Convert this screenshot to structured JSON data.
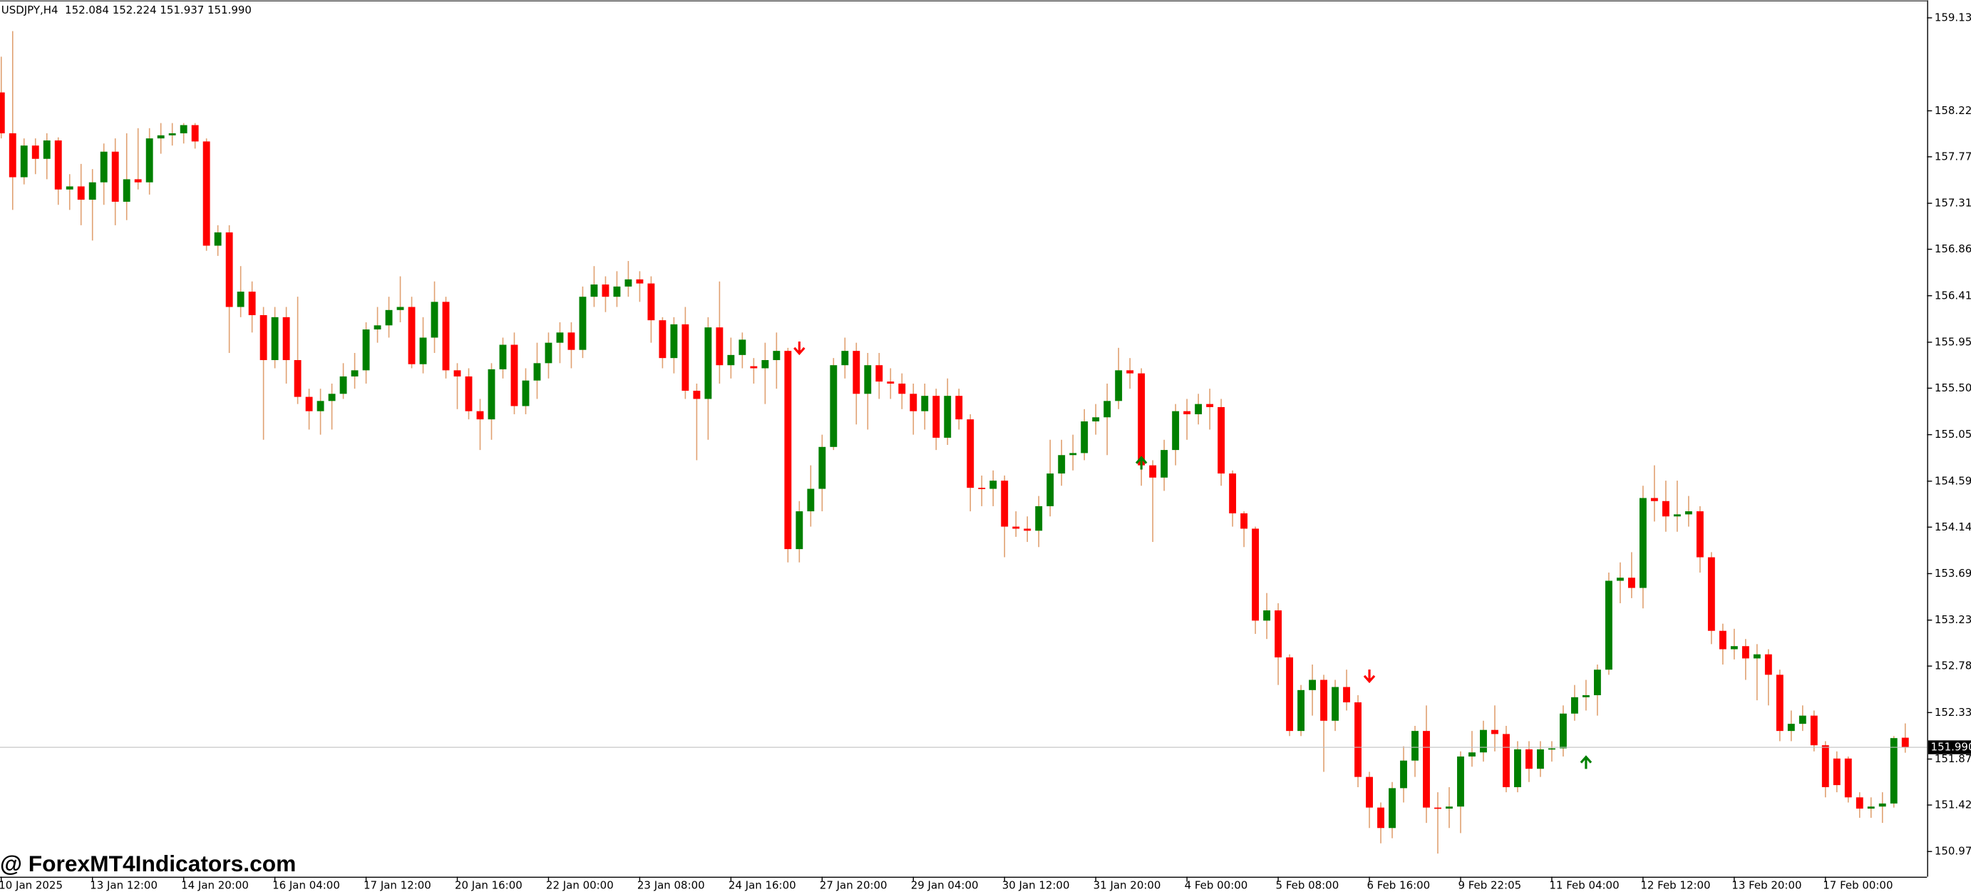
{
  "chart_data": {
    "type": "candlestick",
    "header": "USDJPY,H4  152.084 152.224 151.937 151.990",
    "watermark": "@ ForexMT4Indicators.com",
    "bull_color": "#008000",
    "bear_color": "#ff0000",
    "wick_color": "#e0a070",
    "grid": false,
    "ylim": [
      150.724,
      159.302
    ],
    "yticks": [
      {
        "value": 159.13,
        "label": "159.130"
      },
      {
        "value": 158.22,
        "label": "158.220"
      },
      {
        "value": 157.77,
        "label": "157.770"
      },
      {
        "value": 157.315,
        "label": "157.315"
      },
      {
        "value": 156.865,
        "label": "156.865"
      },
      {
        "value": 156.41,
        "label": "156.410"
      },
      {
        "value": 155.955,
        "label": "155.955"
      },
      {
        "value": 155.505,
        "label": "155.505"
      },
      {
        "value": 155.05,
        "label": "155.050"
      },
      {
        "value": 154.595,
        "label": "154.595"
      },
      {
        "value": 154.145,
        "label": "154.145"
      },
      {
        "value": 153.69,
        "label": "153.690"
      },
      {
        "value": 153.235,
        "label": "153.235"
      },
      {
        "value": 152.785,
        "label": "152.785"
      },
      {
        "value": 152.33,
        "label": "152.330"
      },
      {
        "value": 151.875,
        "label": "151.875"
      },
      {
        "value": 151.425,
        "label": "151.425"
      },
      {
        "value": 150.97,
        "label": "150.970"
      }
    ],
    "last_price": {
      "value": 151.99,
      "label": "151.990"
    },
    "xticks": [
      {
        "value": 0,
        "label": "10 Jan 2025"
      },
      {
        "value": 8,
        "label": "13 Jan 12:00"
      },
      {
        "value": 16,
        "label": "14 Jan 20:00"
      },
      {
        "value": 24,
        "label": "16 Jan 04:00"
      },
      {
        "value": 32,
        "label": "17 Jan 12:00"
      },
      {
        "value": 40,
        "label": "20 Jan 16:00"
      },
      {
        "value": 48,
        "label": "22 Jan 00:00"
      },
      {
        "value": 56,
        "label": "23 Jan 08:00"
      },
      {
        "value": 64,
        "label": "24 Jan 16:00"
      },
      {
        "value": 72,
        "label": "27 Jan 20:00"
      },
      {
        "value": 80,
        "label": "29 Jan 04:00"
      },
      {
        "value": 88,
        "label": "30 Jan 12:00"
      },
      {
        "value": 96,
        "label": "31 Jan 20:00"
      },
      {
        "value": 104,
        "label": "4 Feb 00:00"
      },
      {
        "value": 112,
        "label": "5 Feb 08:00"
      },
      {
        "value": 120,
        "label": "6 Feb 16:00"
      },
      {
        "value": 128,
        "label": "9 Feb 22:05"
      },
      {
        "value": 136,
        "label": "11 Feb 04:00"
      },
      {
        "value": 144,
        "label": "12 Feb 12:00"
      },
      {
        "value": 152,
        "label": "13 Feb 20:00"
      },
      {
        "value": 160,
        "label": "17 Feb 00:00"
      }
    ],
    "signals": [
      {
        "index": 70,
        "price": 155.9,
        "direction": "down"
      },
      {
        "index": 100,
        "price": 154.77,
        "direction": "up"
      },
      {
        "index": 120,
        "price": 152.69,
        "direction": "down"
      },
      {
        "index": 139,
        "price": 151.84,
        "direction": "up"
      }
    ],
    "ohlc": [
      [
        158.4,
        158.75,
        157.95,
        158.0
      ],
      [
        158.0,
        159.0,
        157.25,
        157.57
      ],
      [
        157.57,
        157.95,
        157.5,
        157.88
      ],
      [
        157.88,
        157.95,
        157.6,
        157.75
      ],
      [
        157.75,
        158.0,
        157.55,
        157.93
      ],
      [
        157.93,
        157.96,
        157.3,
        157.45
      ],
      [
        157.45,
        157.6,
        157.25,
        157.48
      ],
      [
        157.48,
        157.7,
        157.1,
        157.35
      ],
      [
        157.35,
        157.65,
        156.95,
        157.52
      ],
      [
        157.52,
        157.9,
        157.3,
        157.82
      ],
      [
        157.82,
        157.95,
        157.1,
        157.33
      ],
      [
        157.33,
        158.0,
        157.15,
        157.55
      ],
      [
        157.55,
        158.05,
        157.45,
        157.52
      ],
      [
        157.52,
        158.05,
        157.4,
        157.95
      ],
      [
        157.95,
        158.1,
        157.8,
        157.98
      ],
      [
        157.98,
        158.1,
        157.88,
        158.0
      ],
      [
        158.0,
        158.1,
        157.9,
        158.08
      ],
      [
        158.08,
        158.1,
        157.85,
        157.92
      ],
      [
        157.92,
        157.95,
        156.85,
        156.9
      ],
      [
        156.9,
        157.1,
        156.8,
        157.03
      ],
      [
        157.03,
        157.1,
        155.85,
        156.3
      ],
      [
        156.3,
        156.7,
        156.2,
        156.45
      ],
      [
        156.45,
        156.55,
        156.05,
        156.22
      ],
      [
        156.22,
        156.3,
        155.0,
        155.78
      ],
      [
        155.78,
        156.3,
        155.7,
        156.2
      ],
      [
        156.2,
        156.3,
        155.55,
        155.78
      ],
      [
        155.78,
        156.4,
        155.35,
        155.42
      ],
      [
        155.42,
        155.5,
        155.1,
        155.28
      ],
      [
        155.28,
        155.5,
        155.05,
        155.38
      ],
      [
        155.38,
        155.55,
        155.1,
        155.45
      ],
      [
        155.45,
        155.75,
        155.4,
        155.62
      ],
      [
        155.62,
        155.85,
        155.5,
        155.68
      ],
      [
        155.68,
        156.15,
        155.55,
        156.08
      ],
      [
        156.08,
        156.3,
        155.95,
        156.12
      ],
      [
        156.12,
        156.4,
        156.0,
        156.27
      ],
      [
        156.27,
        156.6,
        156.15,
        156.3
      ],
      [
        156.3,
        156.4,
        155.7,
        155.74
      ],
      [
        155.74,
        156.2,
        155.65,
        156.0
      ],
      [
        156.0,
        156.55,
        155.85,
        156.35
      ],
      [
        156.35,
        156.4,
        155.6,
        155.68
      ],
      [
        155.68,
        155.75,
        155.3,
        155.62
      ],
      [
        155.62,
        155.7,
        155.2,
        155.28
      ],
      [
        155.28,
        155.4,
        154.9,
        155.2
      ],
      [
        155.2,
        155.75,
        155.0,
        155.69
      ],
      [
        155.69,
        156.0,
        155.6,
        155.93
      ],
      [
        155.93,
        156.05,
        155.25,
        155.33
      ],
      [
        155.33,
        155.7,
        155.25,
        155.58
      ],
      [
        155.58,
        155.95,
        155.4,
        155.75
      ],
      [
        155.75,
        156.05,
        155.6,
        155.95
      ],
      [
        155.95,
        156.15,
        155.75,
        156.05
      ],
      [
        156.05,
        156.15,
        155.7,
        155.88
      ],
      [
        155.88,
        156.5,
        155.8,
        156.4
      ],
      [
        156.4,
        156.7,
        156.3,
        156.52
      ],
      [
        156.52,
        156.6,
        156.25,
        156.4
      ],
      [
        156.4,
        156.65,
        156.3,
        156.5
      ],
      [
        156.5,
        156.75,
        156.4,
        156.57
      ],
      [
        156.57,
        156.65,
        156.35,
        156.53
      ],
      [
        156.53,
        156.6,
        155.95,
        156.17
      ],
      [
        156.17,
        156.2,
        155.7,
        155.8
      ],
      [
        155.8,
        156.2,
        155.65,
        156.13
      ],
      [
        156.13,
        156.3,
        155.4,
        155.48
      ],
      [
        155.48,
        155.55,
        154.8,
        155.4
      ],
      [
        155.4,
        156.2,
        155.0,
        156.1
      ],
      [
        156.1,
        156.55,
        155.55,
        155.73
      ],
      [
        155.73,
        156.0,
        155.6,
        155.83
      ],
      [
        155.83,
        156.05,
        155.7,
        155.98
      ],
      [
        155.72,
        155.8,
        155.55,
        155.7
      ],
      [
        155.7,
        155.95,
        155.35,
        155.78
      ],
      [
        155.78,
        156.05,
        155.5,
        155.87
      ],
      [
        155.87,
        155.9,
        153.8,
        153.93
      ],
      [
        153.93,
        154.4,
        153.8,
        154.3
      ],
      [
        154.3,
        154.75,
        154.15,
        154.52
      ],
      [
        154.52,
        155.05,
        154.3,
        154.93
      ],
      [
        154.93,
        155.8,
        154.9,
        155.73
      ],
      [
        155.73,
        156.0,
        155.6,
        155.87
      ],
      [
        155.87,
        155.95,
        155.15,
        155.45
      ],
      [
        155.45,
        155.85,
        155.1,
        155.73
      ],
      [
        155.73,
        155.85,
        155.4,
        155.57
      ],
      [
        155.57,
        155.7,
        155.4,
        155.55
      ],
      [
        155.55,
        155.65,
        155.3,
        155.45
      ],
      [
        155.45,
        155.55,
        155.05,
        155.28
      ],
      [
        155.28,
        155.55,
        155.1,
        155.43
      ],
      [
        155.43,
        155.5,
        154.9,
        155.02
      ],
      [
        155.02,
        155.6,
        154.95,
        155.43
      ],
      [
        155.43,
        155.5,
        155.1,
        155.2
      ],
      [
        155.2,
        155.25,
        154.3,
        154.53
      ],
      [
        154.53,
        154.65,
        154.35,
        154.52
      ],
      [
        154.52,
        154.7,
        154.35,
        154.6
      ],
      [
        154.6,
        154.65,
        153.85,
        154.15
      ],
      [
        154.15,
        154.3,
        154.05,
        154.13
      ],
      [
        154.13,
        154.25,
        154.0,
        154.11
      ],
      [
        154.11,
        154.45,
        153.95,
        154.35
      ],
      [
        154.35,
        155.0,
        154.25,
        154.67
      ],
      [
        154.67,
        155.0,
        154.55,
        154.85
      ],
      [
        154.85,
        155.05,
        154.7,
        154.87
      ],
      [
        154.87,
        155.3,
        154.8,
        155.18
      ],
      [
        155.18,
        155.35,
        155.05,
        155.22
      ],
      [
        155.22,
        155.55,
        154.85,
        155.38
      ],
      [
        155.38,
        155.9,
        155.3,
        155.68
      ],
      [
        155.68,
        155.8,
        155.5,
        155.65
      ],
      [
        155.65,
        155.7,
        154.55,
        154.75
      ],
      [
        154.75,
        154.8,
        154.0,
        154.63
      ],
      [
        154.63,
        155.0,
        154.5,
        154.9
      ],
      [
        154.9,
        155.35,
        154.75,
        155.28
      ],
      [
        155.28,
        155.4,
        155.0,
        155.25
      ],
      [
        155.25,
        155.45,
        155.15,
        155.35
      ],
      [
        155.35,
        155.5,
        155.1,
        155.32
      ],
      [
        155.32,
        155.4,
        154.55,
        154.67
      ],
      [
        154.67,
        154.7,
        154.15,
        154.28
      ],
      [
        154.28,
        154.3,
        153.95,
        154.13
      ],
      [
        154.13,
        154.15,
        153.1,
        153.23
      ],
      [
        153.23,
        153.5,
        153.05,
        153.33
      ],
      [
        153.33,
        153.4,
        152.6,
        152.87
      ],
      [
        152.87,
        152.9,
        152.1,
        152.15
      ],
      [
        152.15,
        152.6,
        152.1,
        152.55
      ],
      [
        152.55,
        152.8,
        152.3,
        152.65
      ],
      [
        152.65,
        152.7,
        151.75,
        152.25
      ],
      [
        152.25,
        152.65,
        152.15,
        152.58
      ],
      [
        152.58,
        152.75,
        152.35,
        152.43
      ],
      [
        152.43,
        152.5,
        151.6,
        151.7
      ],
      [
        151.7,
        151.75,
        151.2,
        151.4
      ],
      [
        151.4,
        151.45,
        151.05,
        151.2
      ],
      [
        151.2,
        151.65,
        151.1,
        151.59
      ],
      [
        151.59,
        152.0,
        151.45,
        151.86
      ],
      [
        151.86,
        152.2,
        151.7,
        152.15
      ],
      [
        152.15,
        152.4,
        151.25,
        151.4
      ],
      [
        151.4,
        151.55,
        150.95,
        151.39
      ],
      [
        151.39,
        151.6,
        151.2,
        151.41
      ],
      [
        151.41,
        151.95,
        151.15,
        151.9
      ],
      [
        151.9,
        152.15,
        151.8,
        151.94
      ],
      [
        151.94,
        152.25,
        151.85,
        152.16
      ],
      [
        152.16,
        152.4,
        151.95,
        152.12
      ],
      [
        152.12,
        152.2,
        151.55,
        151.6
      ],
      [
        151.6,
        152.05,
        151.55,
        151.97
      ],
      [
        151.97,
        152.05,
        151.65,
        151.78
      ],
      [
        151.78,
        152.05,
        151.7,
        151.97
      ],
      [
        151.97,
        152.05,
        151.85,
        151.98
      ],
      [
        151.98,
        152.4,
        151.9,
        152.32
      ],
      [
        152.32,
        152.6,
        152.25,
        152.48
      ],
      [
        152.48,
        152.65,
        152.35,
        152.5
      ],
      [
        152.5,
        152.8,
        152.3,
        152.75
      ],
      [
        152.75,
        153.7,
        152.7,
        153.62
      ],
      [
        153.62,
        153.8,
        153.4,
        153.65
      ],
      [
        153.65,
        153.9,
        153.45,
        153.55
      ],
      [
        153.55,
        154.55,
        153.35,
        154.43
      ],
      [
        154.43,
        154.75,
        154.2,
        154.4
      ],
      [
        154.4,
        154.6,
        154.1,
        154.25
      ],
      [
        154.25,
        154.6,
        154.1,
        154.27
      ],
      [
        154.27,
        154.45,
        154.15,
        154.3
      ],
      [
        154.3,
        154.35,
        153.7,
        153.85
      ],
      [
        153.85,
        153.9,
        153.0,
        153.13
      ],
      [
        153.13,
        153.2,
        152.8,
        152.95
      ],
      [
        152.95,
        153.15,
        152.85,
        152.98
      ],
      [
        152.98,
        153.05,
        152.65,
        152.86
      ],
      [
        152.86,
        153.0,
        152.45,
        152.9
      ],
      [
        152.9,
        152.95,
        152.4,
        152.7
      ],
      [
        152.7,
        152.75,
        152.05,
        152.15
      ],
      [
        152.15,
        152.35,
        152.05,
        152.22
      ],
      [
        152.22,
        152.4,
        152.15,
        152.3
      ],
      [
        152.3,
        152.35,
        151.95,
        152.01
      ],
      [
        152.01,
        152.05,
        151.5,
        151.6
      ],
      [
        151.88,
        151.95,
        151.55,
        151.62
      ],
      [
        151.88,
        151.9,
        151.45,
        151.5
      ],
      [
        151.5,
        151.55,
        151.3,
        151.39
      ],
      [
        151.39,
        151.5,
        151.3,
        151.41
      ],
      [
        151.41,
        151.55,
        151.25,
        151.44
      ],
      [
        151.44,
        152.1,
        151.4,
        152.08
      ],
      [
        152.084,
        152.224,
        151.937,
        151.99
      ]
    ]
  }
}
